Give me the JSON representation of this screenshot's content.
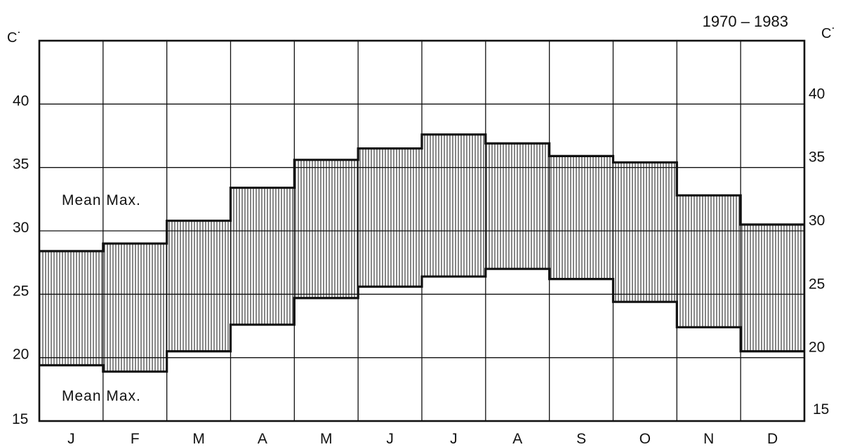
{
  "chart_data": {
    "type": "area",
    "title": "1970 – 1983",
    "ylabel_left": "C˙",
    "ylabel_right": "C˙",
    "categories": [
      "J",
      "F",
      "M",
      "A",
      "M",
      "J",
      "J",
      "A",
      "S",
      "O",
      "N",
      "D"
    ],
    "ylim": [
      15,
      45
    ],
    "yticks": [
      15,
      20,
      25,
      30,
      35,
      40
    ],
    "grid": true,
    "series": [
      {
        "name": "Mean Max.",
        "values": [
          28.4,
          29.0,
          30.8,
          33.4,
          35.6,
          36.5,
          37.6,
          36.9,
          35.9,
          35.4,
          32.8,
          30.5
        ]
      },
      {
        "name": "Mean Max.",
        "values": [
          19.4,
          18.9,
          20.5,
          22.6,
          24.7,
          25.6,
          26.4,
          27.0,
          26.2,
          24.4,
          22.4,
          20.5
        ]
      }
    ],
    "fill": "vertical-hatch",
    "colors": {
      "ink": "#111111",
      "background": "#ffffff"
    }
  }
}
